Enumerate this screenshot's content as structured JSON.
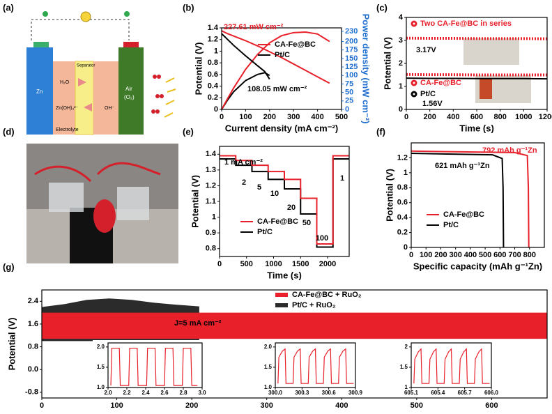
{
  "panel_labels": [
    "(a)",
    "(b)",
    "(c)",
    "(d)",
    "(e)",
    "(f)",
    "(g)"
  ],
  "diagram_a": {
    "labels": [
      "Zn",
      "H₂O",
      "Separator",
      "Zn(OH)₄²⁻",
      "OH⁻",
      "Air",
      "(O₂)",
      "Electrolyte"
    ]
  },
  "chart_data": [
    {
      "type": "line",
      "xlabel": "Current density (mA cm⁻²)",
      "ylabel": "Potential (V)",
      "y2label": "Power density (mW cm⁻²)",
      "y2color": "#1f6fd0",
      "xlim": [
        0,
        500
      ],
      "xticks": [
        0,
        100,
        200,
        300,
        400,
        500
      ],
      "ylim": [
        0,
        1.4
      ],
      "yticks": [
        0,
        0.2,
        0.4,
        0.6,
        0.8,
        1.0,
        1.2,
        1.4
      ],
      "y2lim": [
        0,
        240
      ],
      "y2ticks": [
        0,
        25,
        50,
        75,
        100,
        125,
        150,
        175,
        200,
        230
      ],
      "series": [
        {
          "name": "CA-Fe@BC",
          "color": "#e8202a",
          "x": [
            0,
            25,
            50,
            100,
            150,
            200,
            250,
            300,
            350,
            400,
            450
          ],
          "values": [
            1.35,
            1.3,
            1.26,
            1.18,
            1.09,
            0.99,
            0.89,
            0.78,
            0.67,
            0.56,
            0.45
          ]
        },
        {
          "name": "Pt/C",
          "color": "#000000",
          "x": [
            0,
            25,
            50,
            100,
            150,
            180,
            200
          ],
          "values": [
            1.3,
            1.2,
            1.1,
            0.92,
            0.75,
            0.65,
            0.52
          ]
        },
        {
          "color": "#e8202a",
          "axis": "y2",
          "x": [
            0,
            25,
            50,
            100,
            150,
            200,
            250,
            300,
            350,
            400,
            450
          ],
          "values": [
            0,
            32,
            63,
            118,
            162,
            196,
            217,
            226,
            227.61,
            222,
            200
          ]
        },
        {
          "color": "#000000",
          "axis": "y2",
          "x": [
            0,
            25,
            50,
            100,
            150,
            180,
            200
          ],
          "values": [
            0,
            28,
            52,
            85,
            103,
            108.05,
            100
          ]
        }
      ],
      "annotations": [
        {
          "text": "227.61 mW cm⁻²",
          "color": "#e8202a"
        },
        {
          "text": "108.05 mW cm⁻²",
          "color": "#000000"
        }
      ]
    },
    {
      "type": "line",
      "xlabel": "Time (s)",
      "ylabel": "Potential (V)",
      "legend_marker": "circle",
      "xlim": [
        0,
        1200
      ],
      "xticks": [
        0,
        200,
        400,
        600,
        800,
        1000,
        1200
      ],
      "ylim": [
        0,
        4
      ],
      "yticks": [
        0,
        1,
        2,
        3,
        4
      ],
      "x": [
        0,
        200,
        400,
        600,
        800,
        1000,
        1200
      ],
      "series": [
        {
          "name": "Two CA-Fe@BC in series",
          "color": "#e8202a",
          "linestyle": "dotted",
          "values": [
            3.1,
            3.09,
            3.09,
            3.08,
            3.08,
            3.08,
            3.07
          ]
        },
        {
          "name": "CA-Fe@BC",
          "color": "#e8202a",
          "linestyle": "dotted",
          "values": [
            1.52,
            1.51,
            1.51,
            1.5,
            1.5,
            1.5,
            1.5
          ]
        },
        {
          "name": "Pt/C",
          "color": "#000000",
          "values": [
            1.36,
            1.35,
            1.35,
            1.34,
            1.34,
            1.34,
            1.33
          ]
        }
      ],
      "annotations": [
        {
          "text": "3.17V",
          "color": "#000000"
        },
        {
          "text": "1.56V",
          "color": "#000000"
        }
      ]
    },
    {
      "type": "line",
      "xlabel": "Time (s)",
      "ylabel": "Potential (V)",
      "xlim": [
        0,
        2400
      ],
      "xticks": [
        0,
        500,
        1000,
        1500,
        2000
      ],
      "ylim": [
        0.75,
        1.45
      ],
      "yticks": [
        0.8,
        0.9,
        1.0,
        1.1,
        1.2,
        1.3,
        1.4
      ],
      "x": [
        0,
        300,
        300,
        600,
        600,
        900,
        900,
        1200,
        1200,
        1500,
        1500,
        1800,
        1800,
        2100,
        2100,
        2400
      ],
      "series": [
        {
          "name": "CA-Fe@BC",
          "color": "#e8202a",
          "values": [
            1.39,
            1.39,
            1.36,
            1.36,
            1.33,
            1.33,
            1.29,
            1.29,
            1.24,
            1.24,
            1.12,
            1.12,
            0.83,
            0.83,
            1.39,
            1.39
          ]
        },
        {
          "name": "Pt/C",
          "color": "#000000",
          "values": [
            1.37,
            1.37,
            1.33,
            1.33,
            1.29,
            1.29,
            1.24,
            1.24,
            1.18,
            1.18,
            1.02,
            1.02,
            0.81,
            0.81,
            1.37,
            1.37
          ]
        }
      ],
      "annotations": [
        {
          "text": "1 mA cm⁻²",
          "color": "#000000"
        },
        {
          "text": "2",
          "color": "#000000"
        },
        {
          "text": "5",
          "color": "#000000"
        },
        {
          "text": "10",
          "color": "#000000"
        },
        {
          "text": "20",
          "color": "#000000"
        },
        {
          "text": "50",
          "color": "#000000"
        },
        {
          "text": "100",
          "color": "#000000"
        },
        {
          "text": "1",
          "color": "#000000"
        }
      ]
    },
    {
      "type": "line",
      "xlabel": "Specific capacity (mAh g⁻¹Zn)",
      "ylabel": "Potential (V)",
      "xlim": [
        0,
        900
      ],
      "xticks": [
        0,
        100,
        200,
        300,
        400,
        500,
        600,
        700,
        800
      ],
      "ylim": [
        0,
        1.4
      ],
      "yticks": [
        0,
        0.2,
        0.4,
        0.6,
        0.8,
        1.0,
        1.2
      ],
      "series": [
        {
          "name": "CA-Fe@BC",
          "color": "#e8202a",
          "x": [
            0,
            700,
            785,
            792,
            795
          ],
          "values": [
            1.29,
            1.27,
            1.23,
            0.8,
            0
          ]
        },
        {
          "name": "Pt/C",
          "color": "#000000",
          "x": [
            0,
            550,
            615,
            621,
            624
          ],
          "values": [
            1.26,
            1.24,
            1.19,
            0.8,
            0
          ]
        }
      ],
      "annotations": [
        {
          "text": "792 mAh g⁻¹Zn",
          "color": "#e8202a"
        },
        {
          "text": "621 mAh g⁻¹Zn",
          "color": "#000000"
        }
      ]
    },
    {
      "type": "band",
      "ylabel": "Potential (V)",
      "xlim": [
        0,
        674
      ],
      "xticks": [
        0,
        100,
        200,
        300,
        400,
        500,
        600
      ],
      "ylim": [
        -1.0,
        2.8
      ],
      "yticks": [
        -0.8,
        {
          "value": 0,
          "label": "0.0"
        },
        0.8,
        1.6,
        2.4
      ],
      "series": [
        {
          "name": "CA-Fe@BC + RuO₂",
          "color": "#e8202a",
          "x": [
            0,
            674
          ],
          "upper": [
            2.0,
            2.0
          ],
          "lower": [
            1.08,
            1.08
          ]
        },
        {
          "name": "Pt/C + RuO₂",
          "color": "#2b2b2b",
          "x": [
            0,
            30,
            60,
            90,
            120,
            150,
            180,
            210
          ],
          "upper": [
            2.2,
            2.3,
            2.45,
            2.5,
            2.45,
            2.35,
            2.28,
            2.22
          ],
          "lower": [
            1.0,
            1.0,
            1.0,
            1.0,
            1.0,
            1.0,
            1.0,
            1.0
          ]
        }
      ],
      "annotations": [
        {
          "text": "J=5 mA cm⁻²",
          "color": "#000000"
        }
      ]
    },
    {
      "type": "line",
      "xlim": [
        2.0,
        3.0
      ],
      "xticks": [
        {
          "value": 2,
          "label": "2.0"
        },
        2.2,
        2.4,
        2.6,
        2.8,
        {
          "value": 3,
          "label": "3.0"
        }
      ],
      "ylim": [
        1.0,
        2.1
      ],
      "yticks": [
        {
          "value": 1,
          "label": "1.0"
        },
        1.5,
        {
          "value": 2,
          "label": "2.0"
        }
      ],
      "series": [
        {
          "color": "#e8202a",
          "x": [
            2.03,
            2.04,
            2.12,
            2.13,
            2.22,
            2.23,
            2.31,
            2.32,
            2.41,
            2.42,
            2.5,
            2.51,
            2.6,
            2.61,
            2.69,
            2.7,
            2.79,
            2.8,
            2.88,
            2.89,
            2.95
          ],
          "values": [
            1.05,
            1.97,
            1.97,
            1.05,
            1.05,
            1.97,
            1.97,
            1.05,
            1.05,
            1.97,
            1.97,
            1.05,
            1.05,
            1.97,
            1.97,
            1.05,
            1.05,
            1.97,
            1.97,
            1.05,
            1.05
          ]
        }
      ]
    },
    {
      "type": "line",
      "xlim": [
        300.0,
        300.9
      ],
      "xticks": [
        {
          "value": 300,
          "label": "300.0"
        },
        300.3,
        300.6,
        300.9
      ],
      "ylim": [
        1.0,
        2.1
      ],
      "yticks": [
        {
          "value": 1,
          "label": "1.0"
        },
        1.5,
        {
          "value": 2,
          "label": "2.0"
        }
      ],
      "series": [
        {
          "color": "#e8202a",
          "x": [
            300.03,
            300.04,
            300.08,
            300.11,
            300.12,
            300.2,
            300.21,
            300.25,
            300.28,
            300.29,
            300.37,
            300.38,
            300.42,
            300.45,
            300.46,
            300.54,
            300.55,
            300.59,
            300.62,
            300.63,
            300.71,
            300.72,
            300.76,
            300.79,
            300.8,
            300.88
          ],
          "values": [
            1.1,
            1.75,
            1.9,
            1.95,
            1.1,
            1.1,
            1.75,
            1.9,
            1.95,
            1.1,
            1.1,
            1.75,
            1.9,
            1.95,
            1.1,
            1.1,
            1.75,
            1.9,
            1.95,
            1.1,
            1.1,
            1.75,
            1.9,
            1.95,
            1.1,
            1.1
          ]
        }
      ]
    },
    {
      "type": "line",
      "xlim": [
        605.1,
        606.0
      ],
      "xticks": [
        605.1,
        605.4,
        605.7,
        {
          "value": 606,
          "label": "606.0"
        }
      ],
      "ylim": [
        1.0,
        2.1
      ],
      "yticks": [
        1,
        1.5,
        2
      ],
      "series": [
        {
          "color": "#e8202a",
          "x": [
            605.13,
            605.14,
            605.18,
            605.21,
            605.22,
            605.3,
            605.31,
            605.35,
            605.38,
            605.39,
            605.47,
            605.48,
            605.52,
            605.55,
            605.56,
            605.64,
            605.65,
            605.69,
            605.72,
            605.73,
            605.81,
            605.82,
            605.86,
            605.89,
            605.9,
            605.98
          ],
          "values": [
            1.1,
            1.7,
            1.88,
            1.95,
            1.1,
            1.1,
            1.7,
            1.88,
            1.95,
            1.1,
            1.1,
            1.7,
            1.88,
            1.95,
            1.1,
            1.1,
            1.7,
            1.88,
            1.95,
            1.1,
            1.1,
            1.7,
            1.88,
            1.95,
            1.1,
            1.1
          ]
        }
      ]
    }
  ]
}
